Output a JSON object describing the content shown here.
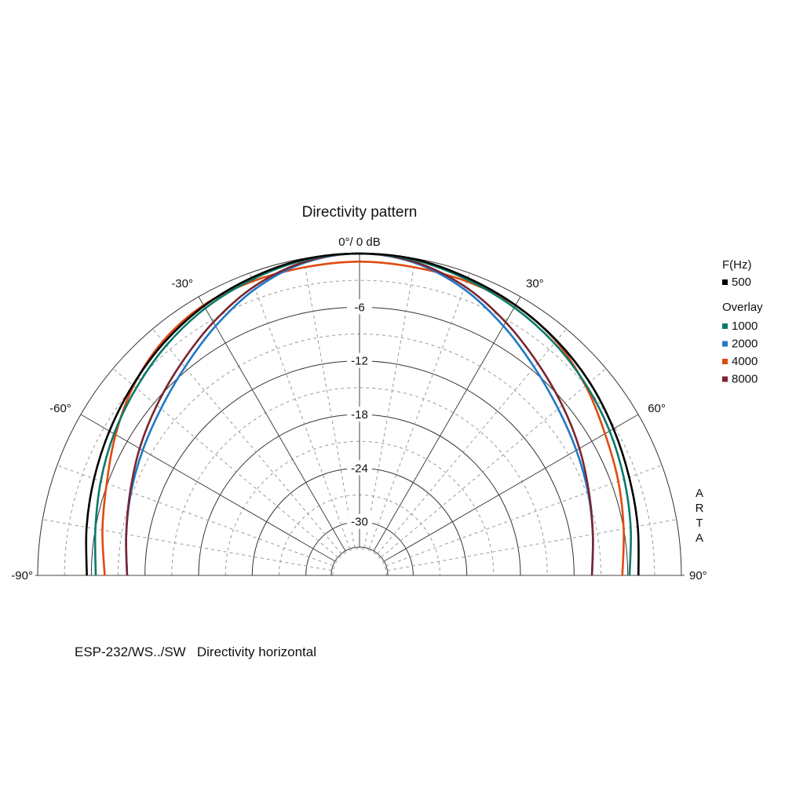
{
  "chart_data": {
    "type": "polar",
    "title": "Directivity pattern",
    "subtitle": "ESP-232/WS../SW   Directivity horizontal",
    "top_label": "0°/ 0 dB",
    "side_label": "ARTA",
    "angle_range": [
      -90,
      90
    ],
    "radial_range_db": [
      -36,
      0
    ],
    "angle_labels": [
      {
        "angle": -90,
        "text": "-90°"
      },
      {
        "angle": -60,
        "text": "-60°"
      },
      {
        "angle": -30,
        "text": "-30°"
      },
      {
        "angle": 30,
        "text": "30°"
      },
      {
        "angle": 60,
        "text": "60°"
      },
      {
        "angle": 90,
        "text": "90°"
      }
    ],
    "db_labels": [
      {
        "db": -6,
        "text": "-6"
      },
      {
        "db": -12,
        "text": "-12"
      },
      {
        "db": -18,
        "text": "-18"
      },
      {
        "db": -24,
        "text": "-24"
      },
      {
        "db": -30,
        "text": "-30"
      }
    ],
    "legend": {
      "header": "F(Hz)",
      "overlay_label": "Overlay"
    },
    "angles": [
      -90,
      -80,
      -70,
      -60,
      -50,
      -40,
      -30,
      -20,
      -10,
      0,
      10,
      20,
      30,
      40,
      50,
      60,
      70,
      80,
      90
    ],
    "series": [
      {
        "name": "500",
        "color": "#000000",
        "group": "main",
        "values": [
          -5.5,
          -5.0,
          -4.4,
          -3.7,
          -2.9,
          -2.0,
          -1.2,
          -0.6,
          -0.1,
          0,
          -0.1,
          -0.6,
          -1.1,
          -1.7,
          -2.4,
          -3.2,
          -3.9,
          -4.4,
          -4.8
        ]
      },
      {
        "name": "1000",
        "color": "#0b7a6a",
        "group": "overlay",
        "values": [
          -6.5,
          -6.0,
          -5.2,
          -4.3,
          -3.4,
          -2.4,
          -1.5,
          -0.8,
          -0.2,
          0,
          -0.2,
          -0.8,
          -1.4,
          -2.1,
          -2.9,
          -3.7,
          -4.5,
          -5.2,
          -5.8
        ]
      },
      {
        "name": "2000",
        "color": "#1f78c8",
        "group": "overlay",
        "values": [
          -10.0,
          -9.5,
          -8.8,
          -8.0,
          -7.0,
          -5.6,
          -3.8,
          -1.9,
          -0.5,
          0,
          -0.5,
          -1.9,
          -3.8,
          -5.6,
          -7.0,
          -8.0,
          -8.8,
          -9.5,
          -10.0
        ]
      },
      {
        "name": "4000",
        "color": "#e04a10",
        "group": "overlay",
        "values": [
          -7.5,
          -6.8,
          -5.9,
          -4.5,
          -3.0,
          -1.8,
          -1.1,
          -1.0,
          -1.0,
          -0.9,
          -1.0,
          -1.0,
          -1.1,
          -1.8,
          -3.0,
          -4.3,
          -5.2,
          -6.0,
          -6.6
        ]
      },
      {
        "name": "8000",
        "color": "#7a2530",
        "group": "overlay",
        "values": [
          -10.0,
          -9.5,
          -8.7,
          -7.6,
          -6.4,
          -5.0,
          -3.3,
          -1.6,
          -0.4,
          0,
          -0.4,
          -1.6,
          -3.3,
          -5.0,
          -6.4,
          -7.6,
          -8.7,
          -9.5,
          -10.0
        ]
      }
    ]
  }
}
